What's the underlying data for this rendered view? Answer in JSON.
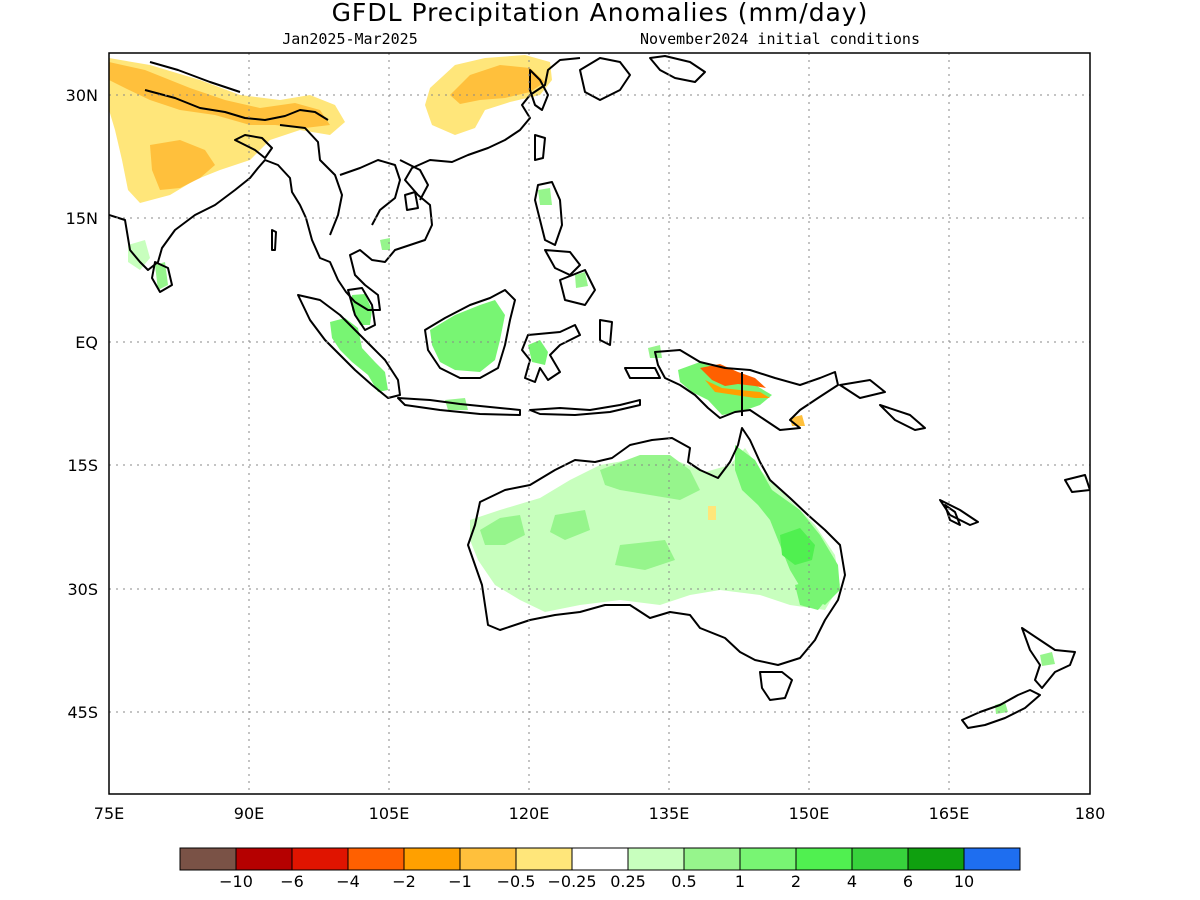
{
  "title": "GFDL Precipitation Anomalies (mm/day)",
  "period": "Jan2025-Mar2025",
  "init": "November2024 initial conditions",
  "lat_labels": [
    "30N",
    "15N",
    "EQ",
    "15S",
    "30S",
    "45S"
  ],
  "lon_labels": [
    "75E",
    "90E",
    "105E",
    "120E",
    "135E",
    "150E",
    "165E",
    "180"
  ],
  "colorbar": {
    "colors": [
      "#7a5246",
      "#b50000",
      "#e01400",
      "#ff6000",
      "#ffa000",
      "#ffc03c",
      "#ffe67a",
      "#ffffff",
      "#c8ffbe",
      "#96f58c",
      "#78f573",
      "#50f050",
      "#37d23c",
      "#0fa00f",
      "#1e6ef0"
    ],
    "labels": [
      "-10",
      "-6",
      "-4",
      "-2",
      "-1",
      "-0.5",
      "-0.25",
      "0.25",
      "0.5",
      "1",
      "2",
      "4",
      "6",
      "10"
    ]
  },
  "map_data": {
    "extent": {
      "lon": [
        75,
        180
      ],
      "lat": [
        -46,
        33
      ]
    },
    "anomaly_regions": [
      {
        "region": "north-india-nepal",
        "class": "-0.5"
      },
      {
        "region": "north-india-core",
        "class": "-1"
      },
      {
        "region": "east-china",
        "class": "-0.5"
      },
      {
        "region": "east-china-core",
        "class": "-1"
      },
      {
        "region": "sri-lanka-south-india",
        "class": "0.5"
      },
      {
        "region": "sumatra",
        "class": "1"
      },
      {
        "region": "borneo",
        "class": "1"
      },
      {
        "region": "sulawesi",
        "class": "1"
      },
      {
        "region": "java",
        "class": "1"
      },
      {
        "region": "new-guinea-highlands",
        "class": "-2"
      },
      {
        "region": "new-guinea-south",
        "class": "1"
      },
      {
        "region": "australia-interior",
        "class": "0.25"
      },
      {
        "region": "australia-north",
        "class": "0.5"
      },
      {
        "region": "queensland-east",
        "class": "1"
      },
      {
        "region": "new-zealand",
        "class": "0.5"
      }
    ]
  }
}
